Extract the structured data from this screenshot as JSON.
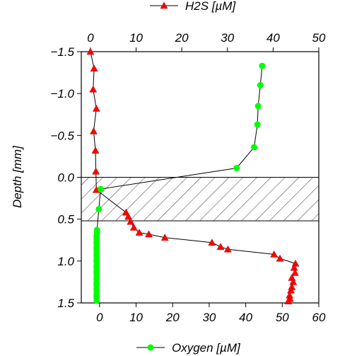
{
  "chart_data": {
    "type": "line",
    "ylabel": "Depth [mm]",
    "y_ticks": [
      -1.5,
      -1.0,
      -0.5,
      0.0,
      0.5,
      1.0,
      1.5
    ],
    "y_tick_labels": [
      "−1.5",
      "−1.0",
      "−0.5",
      "0.0",
      "0.5",
      "1.0",
      "1.5"
    ],
    "ylim": [
      -1.5,
      1.5
    ],
    "y_inverted": true,
    "top_axis": {
      "label": "H2S [µM]",
      "ticks": [
        0,
        10,
        20,
        30,
        40,
        50
      ],
      "xlim": [
        -2,
        50
      ]
    },
    "bottom_axis": {
      "label": "Oxygen [µM]",
      "ticks": [
        0,
        10,
        20,
        30,
        40,
        50,
        60
      ],
      "xlim": [
        -5,
        60
      ]
    },
    "hatched_band": [
      0.0,
      0.52
    ],
    "series": [
      {
        "name": "H2S [µM]",
        "axis": "top",
        "color": "#ff0000",
        "marker": "triangle",
        "points": [
          [
            0.0,
            -1.5
          ],
          [
            0.8,
            -1.3
          ],
          [
            0.6,
            -1.05
          ],
          [
            1.3,
            -0.82
          ],
          [
            0.7,
            -0.55
          ],
          [
            1.1,
            -0.32
          ],
          [
            1.2,
            -0.07
          ],
          [
            1.3,
            0.15
          ],
          [
            7.8,
            0.42
          ],
          [
            8.3,
            0.47
          ],
          [
            8.8,
            0.53
          ],
          [
            9.5,
            0.6
          ],
          [
            10.7,
            0.66
          ],
          [
            12.8,
            0.68
          ],
          [
            16.3,
            0.72
          ],
          [
            26.6,
            0.78
          ],
          [
            28.5,
            0.83
          ],
          [
            30.1,
            0.86
          ],
          [
            40.2,
            0.92
          ],
          [
            41.5,
            0.97
          ],
          [
            44.9,
            1.03
          ],
          [
            44.6,
            1.08
          ],
          [
            44.8,
            1.14
          ],
          [
            44.1,
            1.2
          ],
          [
            44.4,
            1.25
          ],
          [
            44.1,
            1.31
          ],
          [
            43.9,
            1.35
          ],
          [
            43.6,
            1.41
          ],
          [
            43.7,
            1.45
          ],
          [
            43.3,
            1.48
          ]
        ]
      },
      {
        "name": "Oxygen [µM]",
        "axis": "bottom",
        "color": "#00ff00",
        "marker": "circle",
        "points": [
          [
            44.5,
            -1.33
          ],
          [
            44.0,
            -1.1
          ],
          [
            43.4,
            -0.85
          ],
          [
            43.2,
            -0.63
          ],
          [
            42.3,
            -0.36
          ],
          [
            37.5,
            -0.11
          ],
          [
            0.3,
            0.14
          ],
          [
            -0.2,
            0.38
          ],
          [
            -0.7,
            0.63
          ],
          [
            -0.7,
            0.66
          ],
          [
            -0.8,
            0.7
          ],
          [
            -0.8,
            0.73
          ],
          [
            -0.8,
            0.77
          ],
          [
            -0.8,
            0.8
          ],
          [
            -0.8,
            0.84
          ],
          [
            -0.8,
            0.87
          ],
          [
            -0.8,
            0.91
          ],
          [
            -0.8,
            0.94
          ],
          [
            -0.8,
            0.98
          ],
          [
            -0.8,
            1.01
          ],
          [
            -0.8,
            1.05
          ],
          [
            -0.8,
            1.08
          ],
          [
            -0.8,
            1.12
          ],
          [
            -0.8,
            1.15
          ],
          [
            -0.8,
            1.19
          ],
          [
            -0.8,
            1.22
          ],
          [
            -0.8,
            1.26
          ],
          [
            -0.8,
            1.29
          ],
          [
            -0.8,
            1.33
          ],
          [
            -0.8,
            1.36
          ],
          [
            -0.8,
            1.4
          ],
          [
            -0.8,
            1.43
          ],
          [
            -0.8,
            1.47
          ]
        ]
      }
    ]
  }
}
